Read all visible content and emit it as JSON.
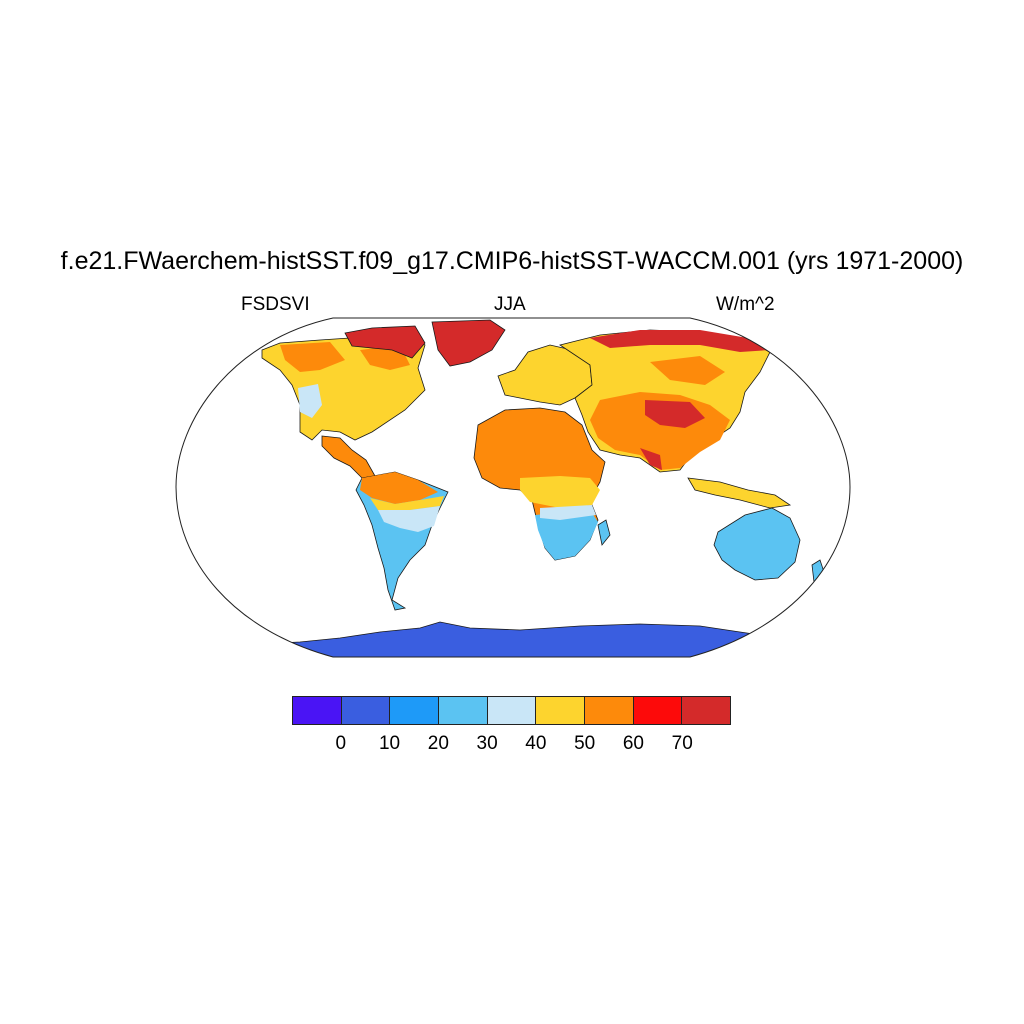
{
  "title": "f.e21.FWaerchem-histSST.f09_g17.CMIP6-histSST-WACCM.001 (yrs 1971-2000)",
  "subtitle_left": "FSDSVI",
  "subtitle_center": "JJA",
  "subtitle_right": "W/m^2",
  "colorbar": {
    "colors": [
      "#4a14f5",
      "#3a5ee0",
      "#1e9af8",
      "#5bc3f2",
      "#c9e6f7",
      "#fdd42e",
      "#fd8a0b",
      "#fd0a0a",
      "#d42a2a"
    ],
    "labels": [
      "0",
      "10",
      "20",
      "30",
      "40",
      "50",
      "60",
      "70"
    ]
  }
}
